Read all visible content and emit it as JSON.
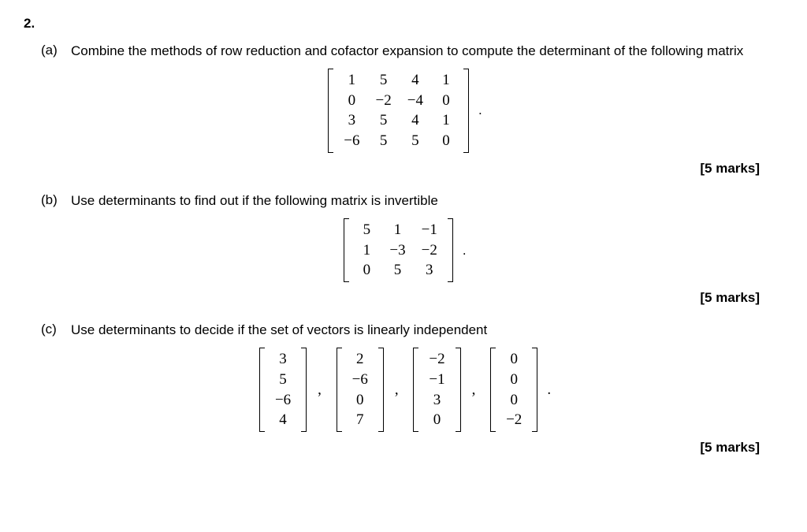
{
  "problem_number": "2.",
  "parts": {
    "a": {
      "label": "(a)",
      "text": "Combine the methods of row reduction and cofactor expansion to compute the determinant of the following matrix",
      "matrix": {
        "rows": [
          [
            "1",
            "5",
            "4",
            "1"
          ],
          [
            "0",
            "−2",
            "−4",
            "0"
          ],
          [
            "3",
            "5",
            "4",
            "1"
          ],
          [
            "−6",
            "5",
            "5",
            "0"
          ]
        ]
      },
      "trailing": ".",
      "marks": "[5 marks]"
    },
    "b": {
      "label": "(b)",
      "text": "Use determinants to find out if the following matrix is invertible",
      "matrix": {
        "rows": [
          [
            "5",
            "1",
            "−1"
          ],
          [
            "1",
            "−3",
            "−2"
          ],
          [
            "0",
            "5",
            "3"
          ]
        ]
      },
      "trailing": ".",
      "marks": "[5 marks]"
    },
    "c": {
      "label": "(c)",
      "text": "Use determinants to decide if the set of vectors is linearly independent",
      "vectors": [
        {
          "rows": [
            [
              "3"
            ],
            [
              "5"
            ],
            [
              "−6"
            ],
            [
              "4"
            ]
          ]
        },
        {
          "rows": [
            [
              "2"
            ],
            [
              "−6"
            ],
            [
              "0"
            ],
            [
              "7"
            ]
          ]
        },
        {
          "rows": [
            [
              "−2"
            ],
            [
              "−1"
            ],
            [
              "3"
            ],
            [
              "0"
            ]
          ]
        },
        {
          "rows": [
            [
              "0"
            ],
            [
              "0"
            ],
            [
              "0"
            ],
            [
              "−2"
            ]
          ]
        }
      ],
      "separator": ",",
      "trailing": ".",
      "marks": "[5 marks]"
    }
  }
}
